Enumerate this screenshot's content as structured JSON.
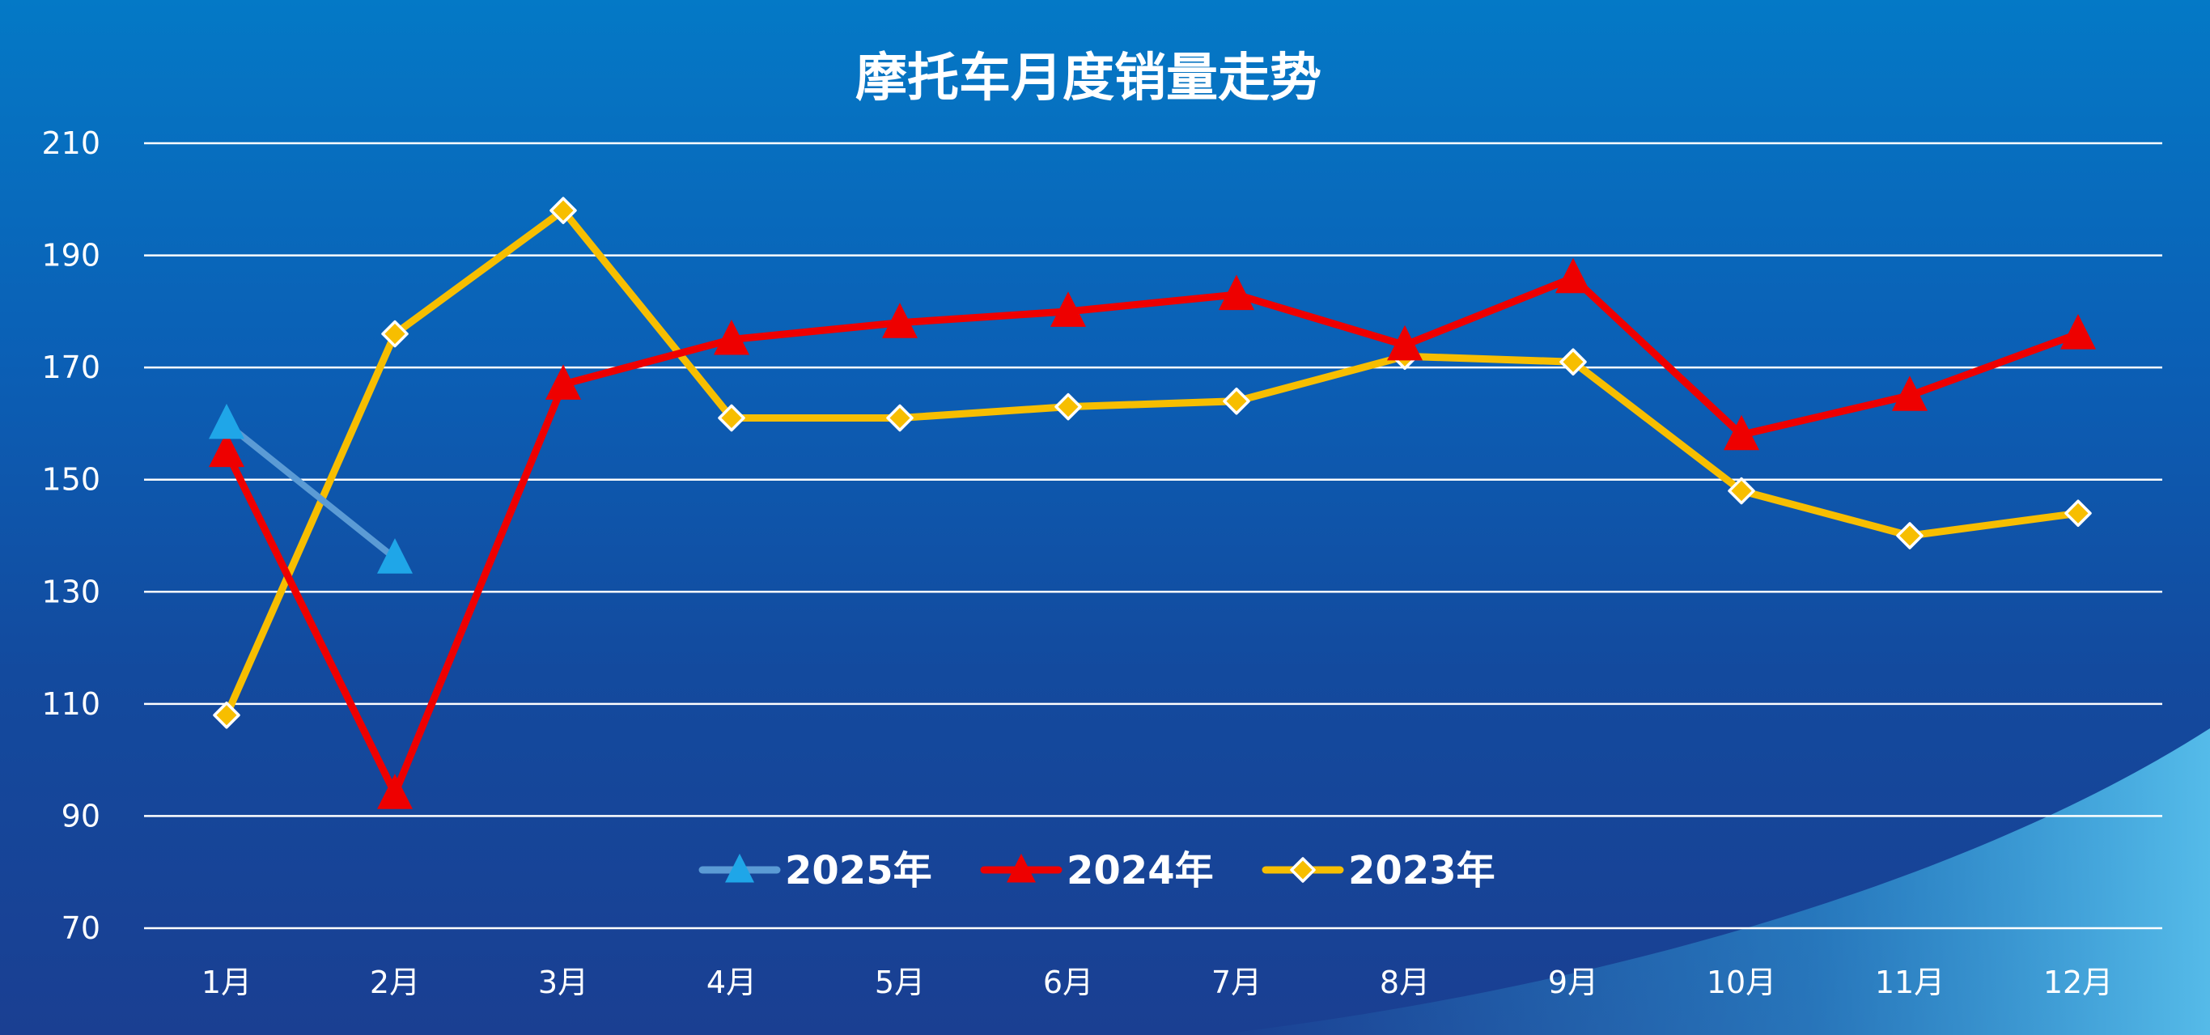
{
  "chart_data": {
    "type": "line",
    "title": "摩托车月度销量走势",
    "xlabel": "",
    "ylabel": "",
    "categories": [
      "1月",
      "2月",
      "3月",
      "4月",
      "5月",
      "6月",
      "7月",
      "8月",
      "9月",
      "10月",
      "11月",
      "12月"
    ],
    "y_ticks": [
      "210",
      "190",
      "170",
      "150",
      "130",
      "110",
      "90",
      "70"
    ],
    "ylim": [
      70,
      210
    ],
    "grid": true,
    "legend_position": "bottom-center",
    "series": [
      {
        "name": "2025年",
        "color": "#5b9bd5",
        "marker": "triangle",
        "marker_color": "#1fa6e8",
        "values": [
          160,
          136,
          null,
          null,
          null,
          null,
          null,
          null,
          null,
          null,
          null,
          null
        ]
      },
      {
        "name": "2024年",
        "color": "#ee0000",
        "marker": "triangle",
        "marker_color": "#ee0000",
        "values": [
          155,
          94,
          167,
          175,
          178,
          180,
          183,
          174,
          186,
          158,
          165,
          176
        ]
      },
      {
        "name": "2023年",
        "color": "#f7be00",
        "marker": "diamond",
        "marker_color": "#f7be00",
        "values": [
          108,
          176,
          198,
          161,
          161,
          163,
          164,
          172,
          171,
          148,
          140,
          144
        ]
      }
    ]
  }
}
